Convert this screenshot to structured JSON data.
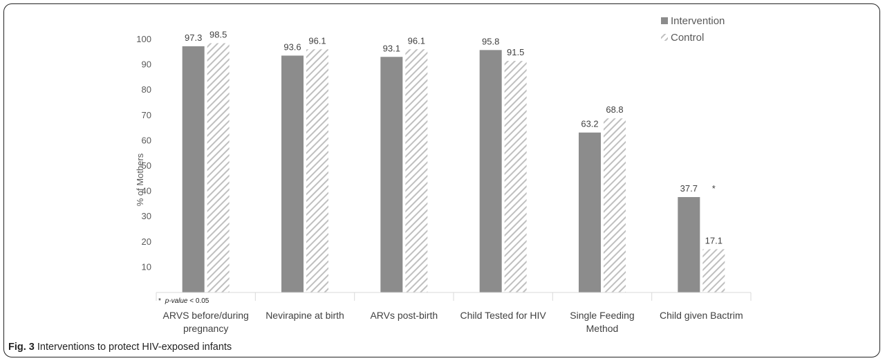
{
  "figure": {
    "label": "Fig. 3",
    "caption": "Interventions to protect HIV-exposed infants"
  },
  "chart_data": {
    "type": "bar",
    "categories": [
      [
        "ARVS before/during",
        "pregnancy"
      ],
      [
        "Nevirapine at birth"
      ],
      [
        "ARVs post-birth"
      ],
      [
        "Child Tested for HIV"
      ],
      [
        "Single Feeding",
        "Method"
      ],
      [
        "Child given Bactrim"
      ]
    ],
    "series": [
      {
        "name": "Intervention",
        "values": [
          97.3,
          93.6,
          93.1,
          95.8,
          63.2,
          37.7
        ],
        "color": "#8c8c8c",
        "pattern": "solid"
      },
      {
        "name": "Control",
        "values": [
          98.5,
          96.1,
          96.1,
          91.5,
          68.8,
          17.1
        ],
        "color": "#bfbfbf",
        "pattern": "diagonal-hatch"
      }
    ],
    "ylabel": "% of Mothers",
    "yticks": [
      10,
      20,
      30,
      40,
      50,
      60,
      70,
      80,
      90,
      100
    ],
    "ylim": [
      0,
      100
    ],
    "legend_position": "top-right",
    "annotations": [
      {
        "text": "*",
        "category_index": 5
      }
    ],
    "footnote": {
      "marker": "*",
      "term": "p-value",
      "rest": " < 0.05"
    }
  }
}
